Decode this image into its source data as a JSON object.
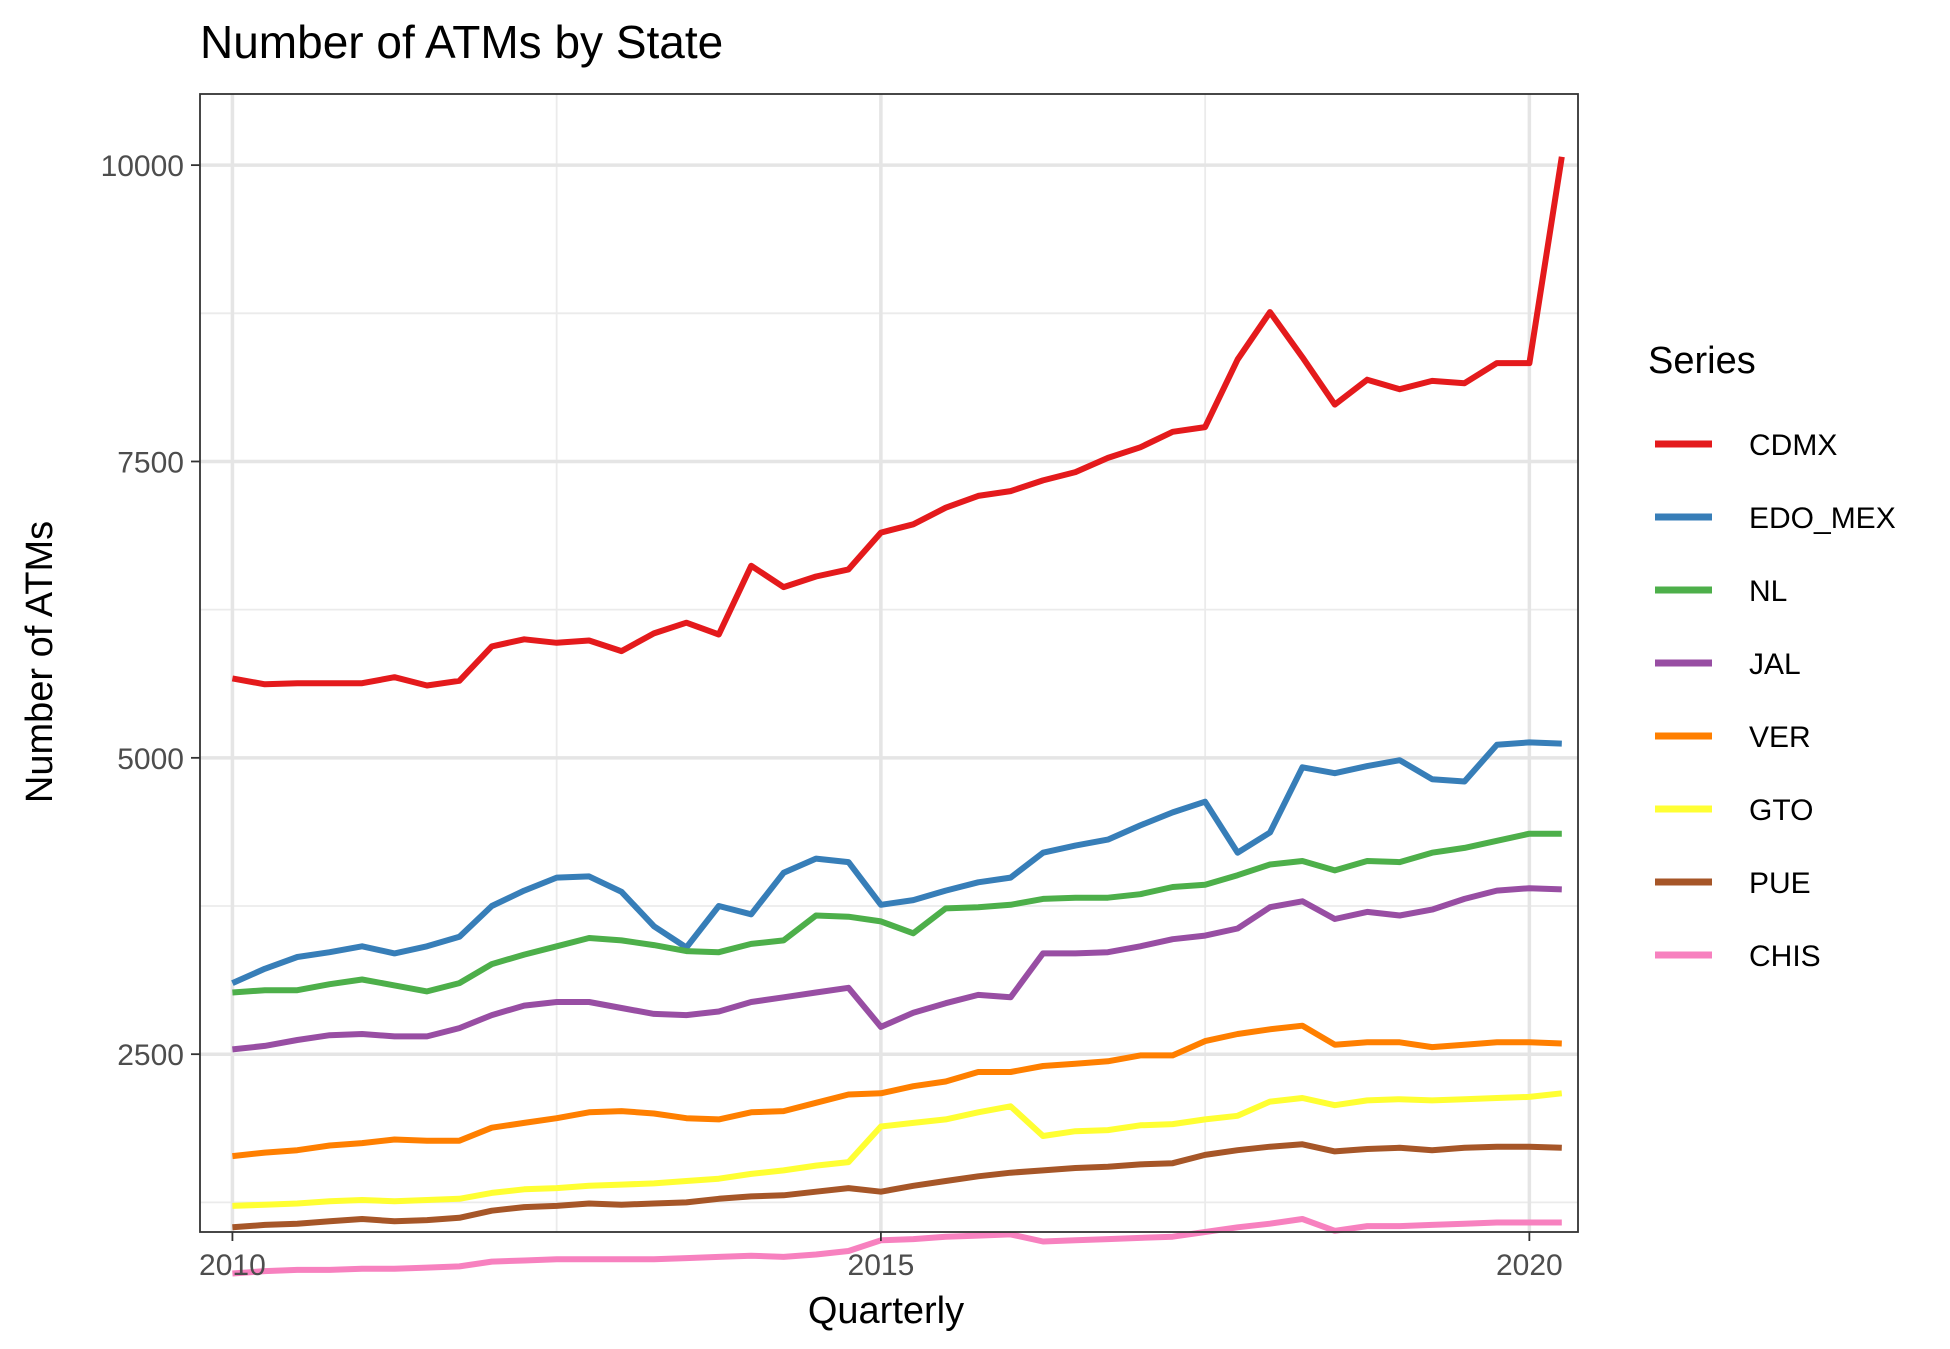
{
  "chart_data": {
    "type": "line",
    "title": "Number of ATMs by State",
    "xlabel": "Quarterly",
    "ylabel": "Number of ATMs",
    "xlim": [
      2009.75,
      2020.375
    ],
    "ylim": [
      1000,
      10600
    ],
    "x_ticks": [
      2010,
      2015,
      2020
    ],
    "x_tick_labels": [
      "2010",
      "2015",
      "2020"
    ],
    "y_ticks": [
      2500,
      5000,
      7500,
      10000
    ],
    "y_tick_labels": [
      "2500",
      "5000",
      "7500",
      "10000"
    ],
    "grid": true,
    "legend": {
      "title": "Series",
      "position": "right"
    },
    "x": [
      2010,
      2010.25,
      2010.5,
      2010.75,
      2011,
      2011.25,
      2011.5,
      2011.75,
      2012,
      2012.25,
      2012.5,
      2012.75,
      2013,
      2013.25,
      2013.5,
      2013.75,
      2014,
      2014.25,
      2014.5,
      2014.75,
      2015,
      2015.25,
      2015.5,
      2015.75,
      2016,
      2016.25,
      2016.5,
      2016.75,
      2017,
      2017.25,
      2017.5,
      2017.75,
      2018,
      2018.25,
      2018.5,
      2018.75,
      2019,
      2019.25,
      2019.5,
      2019.75,
      2020,
      2020.25
    ],
    "series": [
      {
        "name": "CDMX",
        "color": "#E41A1C",
        "values": [
          5670,
          5620,
          5630,
          5630,
          5630,
          5680,
          5610,
          5650,
          5940,
          6000,
          5970,
          5990,
          5900,
          6050,
          6140,
          6040,
          6620,
          6440,
          6530,
          6590,
          6900,
          6970,
          7110,
          7210,
          7250,
          7340,
          7410,
          7530,
          7620,
          7750,
          7790,
          8360,
          8760,
          8380,
          7980,
          8190,
          8110,
          8180,
          8160,
          8330,
          8330,
          10070
        ]
      },
      {
        "name": "EDO_MEX",
        "color": "#377EB8",
        "values": [
          3100,
          3220,
          3320,
          3360,
          3410,
          3350,
          3410,
          3490,
          3750,
          3880,
          3990,
          4000,
          3870,
          3580,
          3400,
          3750,
          3680,
          4030,
          4150,
          4120,
          3760,
          3800,
          3880,
          3950,
          3990,
          4200,
          4260,
          4310,
          4430,
          4540,
          4630,
          4200,
          4370,
          4920,
          4870,
          4930,
          4980,
          4820,
          4800,
          5110,
          5130,
          5120
        ]
      },
      {
        "name": "NL",
        "color": "#4DAF4A",
        "values": [
          3020,
          3040,
          3040,
          3090,
          3130,
          3080,
          3030,
          3100,
          3260,
          3340,
          3410,
          3480,
          3460,
          3420,
          3370,
          3360,
          3430,
          3460,
          3670,
          3660,
          3620,
          3520,
          3730,
          3740,
          3760,
          3810,
          3820,
          3820,
          3850,
          3910,
          3930,
          4010,
          4100,
          4130,
          4050,
          4130,
          4120,
          4200,
          4240,
          4300,
          4360,
          4360
        ]
      },
      {
        "name": "JAL",
        "color": "#984EA3",
        "values": [
          2540,
          2570,
          2620,
          2660,
          2670,
          2650,
          2650,
          2720,
          2830,
          2910,
          2940,
          2940,
          2890,
          2840,
          2830,
          2860,
          2940,
          2980,
          3020,
          3060,
          2730,
          2850,
          2930,
          3000,
          2980,
          3350,
          3350,
          3360,
          3410,
          3470,
          3500,
          3560,
          3740,
          3790,
          3640,
          3700,
          3670,
          3720,
          3810,
          3880,
          3900,
          3890
        ]
      },
      {
        "name": "VER",
        "color": "#FF7F00",
        "values": [
          1640,
          1670,
          1690,
          1730,
          1750,
          1780,
          1770,
          1770,
          1880,
          1920,
          1960,
          2010,
          2020,
          2000,
          1960,
          1950,
          2010,
          2020,
          2090,
          2160,
          2170,
          2230,
          2270,
          2350,
          2350,
          2400,
          2420,
          2440,
          2490,
          2490,
          2610,
          2670,
          2710,
          2740,
          2580,
          2600,
          2600,
          2560,
          2580,
          2600,
          2600,
          2590
        ]
      },
      {
        "name": "GTO",
        "color": "#FFFF33",
        "values": [
          1220,
          1230,
          1240,
          1260,
          1270,
          1260,
          1270,
          1280,
          1330,
          1360,
          1370,
          1390,
          1400,
          1410,
          1430,
          1450,
          1490,
          1520,
          1560,
          1590,
          1890,
          1920,
          1950,
          2010,
          2060,
          1810,
          1850,
          1860,
          1900,
          1910,
          1950,
          1980,
          2100,
          2130,
          2070,
          2110,
          2120,
          2110,
          2120,
          2130,
          2140,
          2170
        ]
      },
      {
        "name": "PUE",
        "color": "#A65628",
        "values": [
          1040,
          1060,
          1070,
          1090,
          1110,
          1090,
          1100,
          1120,
          1180,
          1210,
          1220,
          1240,
          1230,
          1240,
          1250,
          1280,
          1300,
          1310,
          1340,
          1370,
          1340,
          1390,
          1430,
          1470,
          1500,
          1520,
          1540,
          1550,
          1570,
          1580,
          1650,
          1690,
          1720,
          1740,
          1680,
          1700,
          1710,
          1690,
          1710,
          1720,
          1720,
          1710
        ]
      },
      {
        "name": "CHIS",
        "color": "#F781BF",
        "values": [
          650,
          670,
          680,
          680,
          690,
          690,
          700,
          710,
          750,
          760,
          770,
          770,
          770,
          770,
          780,
          790,
          800,
          790,
          810,
          840,
          930,
          940,
          960,
          970,
          980,
          920,
          930,
          940,
          950,
          960,
          1000,
          1040,
          1070,
          1110,
          1010,
          1050,
          1050,
          1060,
          1070,
          1080,
          1080,
          1080
        ]
      }
    ]
  }
}
